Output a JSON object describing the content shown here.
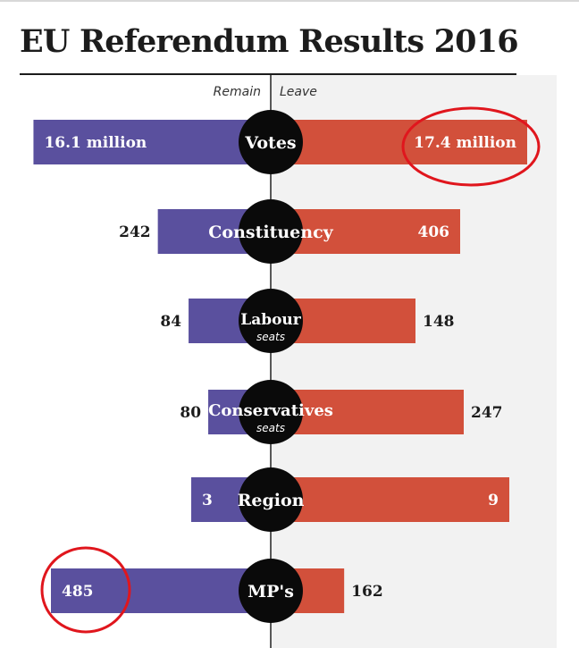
{
  "title": "EU Referendum Results 2016",
  "axis": {
    "left_label": "Remain",
    "right_label": "Leave"
  },
  "colors": {
    "remain": "#5a509e",
    "leave": "#d2503b",
    "circle": "#0a0a0a",
    "panel": "#f2f2f2",
    "annotation": "#e0161d"
  },
  "chart_data": {
    "type": "bar",
    "orientation": "diverging-horizontal",
    "series": [
      {
        "name": "Remain"
      },
      {
        "name": "Leave"
      }
    ],
    "rows": [
      {
        "category": "Votes",
        "subtitle": "",
        "remain": 16.1,
        "leave": 17.4,
        "remain_label": "16.1 million",
        "leave_label": "17.4 million"
      },
      {
        "category": "Constituency",
        "subtitle": "",
        "remain": 242,
        "leave": 406,
        "remain_label": "242",
        "leave_label": "406"
      },
      {
        "category": "Labour",
        "subtitle": "seats",
        "remain": 84,
        "leave": 148,
        "remain_label": "84",
        "leave_label": "148"
      },
      {
        "category": "Conservatives",
        "subtitle": "seats",
        "remain": 80,
        "leave": 247,
        "remain_label": "80",
        "leave_label": "247"
      },
      {
        "category": "Region",
        "subtitle": "",
        "remain": 3,
        "leave": 9,
        "remain_label": "3",
        "leave_label": "9"
      },
      {
        "category": "MP's",
        "subtitle": "",
        "remain": 485,
        "leave": 162,
        "remain_label": "485",
        "leave_label": "162"
      }
    ],
    "annotations": [
      {
        "type": "circle-highlight",
        "target": "Votes.leave"
      },
      {
        "type": "circle-highlight",
        "target": "MP's.remain"
      }
    ]
  }
}
